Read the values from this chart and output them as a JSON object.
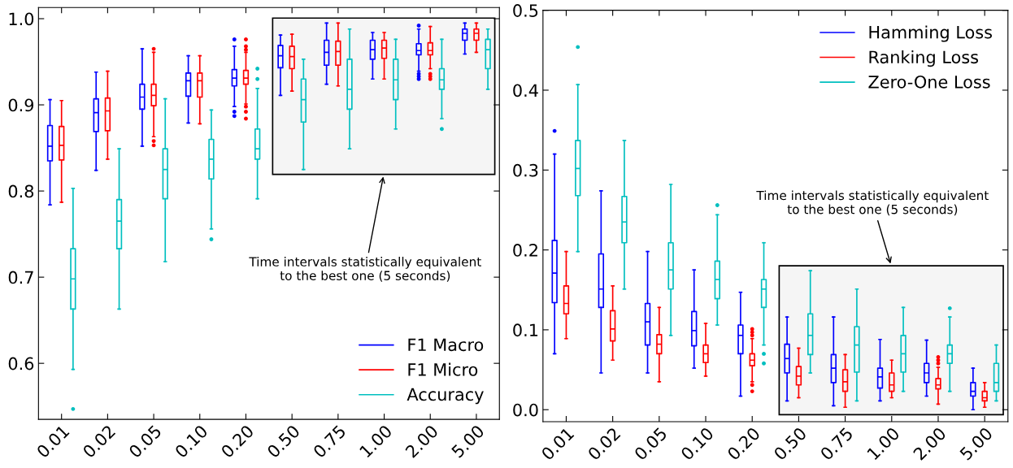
{
  "chart_data": [
    {
      "type": "box",
      "categories": [
        "0.01",
        "0.02",
        "0.05",
        "0.10",
        "0.20",
        "0.50",
        "0.75",
        "1.00",
        "2.00",
        "5.00"
      ],
      "ylim": [
        0.535,
        1.013
      ],
      "yticks": [
        {
          "value": 0.6,
          "label": "0.6"
        },
        {
          "value": 0.7,
          "label": "0.7"
        },
        {
          "value": 0.8,
          "label": "0.8"
        },
        {
          "value": 0.9,
          "label": "0.9"
        },
        {
          "value": 1.0,
          "label": "1.0"
        }
      ],
      "grid": false,
      "legend": "bottom right",
      "bands": [
        {
          "axis": "x",
          "from": "0.50",
          "to": "5.00",
          "color": "#000000"
        }
      ],
      "annotations": [
        "Time intervals statistically equivalent\nto the best one (5 seconds)"
      ],
      "series": [
        {
          "name": "F1 Macro",
          "color": "#0000ff",
          "boxes": [
            {
              "low": 0.784,
              "q1": 0.835,
              "median": 0.852,
              "q3": 0.876,
              "high": 0.906
            },
            {
              "low": 0.824,
              "q1": 0.869,
              "median": 0.891,
              "q3": 0.907,
              "high": 0.938
            },
            {
              "low": 0.852,
              "q1": 0.895,
              "median": 0.909,
              "q3": 0.924,
              "high": 0.965
            },
            {
              "low": 0.879,
              "q1": 0.91,
              "median": 0.928,
              "q3": 0.937,
              "high": 0.957
            },
            {
              "low": 0.898,
              "q1": 0.922,
              "median": 0.931,
              "q3": 0.941,
              "high": 0.968,
              "outliers": [
                0.976,
                0.892,
                0.887
              ]
            },
            {
              "low": 0.911,
              "q1": 0.943,
              "median": 0.957,
              "q3": 0.969,
              "high": 0.981
            },
            {
              "low": 0.924,
              "q1": 0.946,
              "median": 0.961,
              "q3": 0.975,
              "high": 0.995
            },
            {
              "low": 0.93,
              "q1": 0.953,
              "median": 0.964,
              "q3": 0.975,
              "high": 0.984
            },
            {
              "low": 0.939,
              "q1": 0.958,
              "median": 0.963,
              "q3": 0.971,
              "high": 0.988,
              "outliers": [
                0.992,
                0.936,
                0.933,
                0.93
              ]
            },
            {
              "low": 0.959,
              "q1": 0.975,
              "median": 0.983,
              "q3": 0.988,
              "high": 0.995
            }
          ]
        },
        {
          "name": "F1 Micro",
          "color": "#ff0000",
          "boxes": [
            {
              "low": 0.787,
              "q1": 0.836,
              "median": 0.853,
              "q3": 0.875,
              "high": 0.905
            },
            {
              "low": 0.837,
              "q1": 0.87,
              "median": 0.893,
              "q3": 0.908,
              "high": 0.939
            },
            {
              "low": 0.863,
              "q1": 0.899,
              "median": 0.911,
              "q3": 0.924,
              "high": 0.961,
              "outliers": [
                0.965,
                0.858,
                0.853
              ]
            },
            {
              "low": 0.878,
              "q1": 0.909,
              "median": 0.928,
              "q3": 0.937,
              "high": 0.957
            },
            {
              "low": 0.901,
              "q1": 0.924,
              "median": 0.931,
              "q3": 0.94,
              "high": 0.961,
              "outliers": [
                0.976,
                0.968,
                0.964,
                0.898,
                0.892,
                0.884
              ]
            },
            {
              "low": 0.916,
              "q1": 0.942,
              "median": 0.956,
              "q3": 0.968,
              "high": 0.982
            },
            {
              "low": 0.922,
              "q1": 0.946,
              "median": 0.962,
              "q3": 0.974,
              "high": 0.995
            },
            {
              "low": 0.93,
              "q1": 0.954,
              "median": 0.966,
              "q3": 0.975,
              "high": 0.984
            },
            {
              "low": 0.942,
              "q1": 0.958,
              "median": 0.963,
              "q3": 0.972,
              "high": 0.991,
              "outliers": [
                0.936,
                0.933,
                0.93
              ]
            },
            {
              "low": 0.961,
              "q1": 0.975,
              "median": 0.983,
              "q3": 0.988,
              "high": 0.995
            }
          ]
        },
        {
          "name": "Accuracy",
          "color": "#00bfbf",
          "boxes": [
            {
              "low": 0.593,
              "q1": 0.663,
              "median": 0.698,
              "q3": 0.733,
              "high": 0.803,
              "outliers": [
                0.547
              ]
            },
            {
              "low": 0.663,
              "q1": 0.733,
              "median": 0.765,
              "q3": 0.79,
              "high": 0.849
            },
            {
              "low": 0.718,
              "q1": 0.791,
              "median": 0.825,
              "q3": 0.849,
              "high": 0.907
            },
            {
              "low": 0.756,
              "q1": 0.814,
              "median": 0.837,
              "q3": 0.86,
              "high": 0.894,
              "outliers": [
                0.744
              ]
            },
            {
              "low": 0.791,
              "q1": 0.837,
              "median": 0.849,
              "q3": 0.872,
              "high": 0.919,
              "outliers": [
                0.942,
                0.93
              ]
            },
            {
              "low": 0.825,
              "q1": 0.88,
              "median": 0.906,
              "q3": 0.93,
              "high": 0.953
            },
            {
              "low": 0.849,
              "q1": 0.895,
              "median": 0.918,
              "q3": 0.953,
              "high": 0.988
            },
            {
              "low": 0.872,
              "q1": 0.906,
              "median": 0.929,
              "q3": 0.953,
              "high": 0.976
            },
            {
              "low": 0.884,
              "q1": 0.918,
              "median": 0.929,
              "q3": 0.942,
              "high": 0.976,
              "outliers": [
                0.872
              ]
            },
            {
              "low": 0.918,
              "q1": 0.942,
              "median": 0.964,
              "q3": 0.976,
              "high": 0.988
            }
          ]
        }
      ]
    },
    {
      "type": "box",
      "categories": [
        "0.01",
        "0.02",
        "0.05",
        "0.10",
        "0.20",
        "0.50",
        "0.75",
        "1.00",
        "2.00",
        "5.00"
      ],
      "ylim": [
        -0.015,
        0.5
      ],
      "yticks": [
        {
          "value": 0.0,
          "label": "0.0"
        },
        {
          "value": 0.1,
          "label": "0.1"
        },
        {
          "value": 0.2,
          "label": "0.2"
        },
        {
          "value": 0.3,
          "label": "0.3"
        },
        {
          "value": 0.4,
          "label": "0.4"
        },
        {
          "value": 0.5,
          "label": "0.5"
        }
      ],
      "grid": false,
      "legend": "top right",
      "bands": [
        {
          "axis": "x",
          "from": "0.50",
          "to": "5.00",
          "color": "#000000"
        }
      ],
      "annotations": [
        "Time intervals statistically equivalent\nto the best one (5 seconds)"
      ],
      "series": [
        {
          "name": "Hamming Loss",
          "color": "#0000ff",
          "boxes": [
            {
              "low": 0.07,
              "q1": 0.134,
              "median": 0.171,
              "q3": 0.212,
              "high": 0.32,
              "outliers": [
                0.349
              ]
            },
            {
              "low": 0.046,
              "q1": 0.128,
              "median": 0.151,
              "q3": 0.195,
              "high": 0.274
            },
            {
              "low": 0.046,
              "q1": 0.081,
              "median": 0.11,
              "q3": 0.133,
              "high": 0.198
            },
            {
              "low": 0.052,
              "q1": 0.08,
              "median": 0.099,
              "q3": 0.123,
              "high": 0.175
            },
            {
              "low": 0.017,
              "q1": 0.07,
              "median": 0.093,
              "q3": 0.106,
              "high": 0.147
            },
            {
              "low": 0.011,
              "q1": 0.046,
              "median": 0.064,
              "q3": 0.082,
              "high": 0.116
            },
            {
              "low": 0.005,
              "q1": 0.034,
              "median": 0.052,
              "q3": 0.069,
              "high": 0.116
            },
            {
              "low": 0.011,
              "q1": 0.027,
              "median": 0.041,
              "q3": 0.052,
              "high": 0.088
            },
            {
              "low": 0.017,
              "q1": 0.034,
              "median": 0.046,
              "q3": 0.058,
              "high": 0.087
            },
            {
              "low": 0.0,
              "q1": 0.017,
              "median": 0.023,
              "q3": 0.034,
              "high": 0.052
            }
          ]
        },
        {
          "name": "Ranking Loss",
          "color": "#ff0000",
          "boxes": [
            {
              "low": 0.089,
              "q1": 0.12,
              "median": 0.133,
              "q3": 0.155,
              "high": 0.198
            },
            {
              "low": 0.062,
              "q1": 0.086,
              "median": 0.101,
              "q3": 0.124,
              "high": 0.155
            },
            {
              "low": 0.035,
              "q1": 0.07,
              "median": 0.082,
              "q3": 0.094,
              "high": 0.128
            },
            {
              "low": 0.042,
              "q1": 0.059,
              "median": 0.07,
              "q3": 0.081,
              "high": 0.108
            },
            {
              "low": 0.035,
              "q1": 0.055,
              "median": 0.062,
              "q3": 0.07,
              "high": 0.089,
              "outliers": [
                0.101,
                0.097,
                0.093,
                0.031,
                0.023
              ]
            },
            {
              "low": 0.015,
              "q1": 0.031,
              "median": 0.042,
              "q3": 0.054,
              "high": 0.077
            },
            {
              "low": 0.003,
              "q1": 0.023,
              "median": 0.035,
              "q3": 0.05,
              "high": 0.069
            },
            {
              "low": 0.015,
              "q1": 0.023,
              "median": 0.031,
              "q3": 0.046,
              "high": 0.062
            },
            {
              "low": 0.007,
              "q1": 0.026,
              "median": 0.031,
              "q3": 0.039,
              "high": 0.053,
              "outliers": [
                0.066,
                0.062,
                0.058
              ]
            },
            {
              "low": 0.003,
              "q1": 0.011,
              "median": 0.015,
              "q3": 0.023,
              "high": 0.034
            }
          ]
        },
        {
          "name": "Zero-One Loss",
          "color": "#00bfbf",
          "boxes": [
            {
              "low": 0.198,
              "q1": 0.268,
              "median": 0.302,
              "q3": 0.337,
              "high": 0.407,
              "outliers": [
                0.454
              ]
            },
            {
              "low": 0.151,
              "q1": 0.209,
              "median": 0.235,
              "q3": 0.267,
              "high": 0.337
            },
            {
              "low": 0.093,
              "q1": 0.151,
              "median": 0.175,
              "q3": 0.209,
              "high": 0.282
            },
            {
              "low": 0.106,
              "q1": 0.139,
              "median": 0.163,
              "q3": 0.186,
              "high": 0.244,
              "outliers": [
                0.256
              ]
            },
            {
              "low": 0.081,
              "q1": 0.128,
              "median": 0.151,
              "q3": 0.163,
              "high": 0.209,
              "outliers": [
                0.07,
                0.058
              ]
            },
            {
              "low": 0.046,
              "q1": 0.069,
              "median": 0.093,
              "q3": 0.12,
              "high": 0.174
            },
            {
              "low": 0.011,
              "q1": 0.047,
              "median": 0.081,
              "q3": 0.104,
              "high": 0.151
            },
            {
              "low": 0.023,
              "q1": 0.047,
              "median": 0.07,
              "q3": 0.093,
              "high": 0.128
            },
            {
              "low": 0.023,
              "q1": 0.058,
              "median": 0.07,
              "q3": 0.081,
              "high": 0.116,
              "outliers": [
                0.127
              ]
            },
            {
              "low": 0.011,
              "q1": 0.023,
              "median": 0.034,
              "q3": 0.058,
              "high": 0.081
            }
          ]
        }
      ]
    }
  ]
}
